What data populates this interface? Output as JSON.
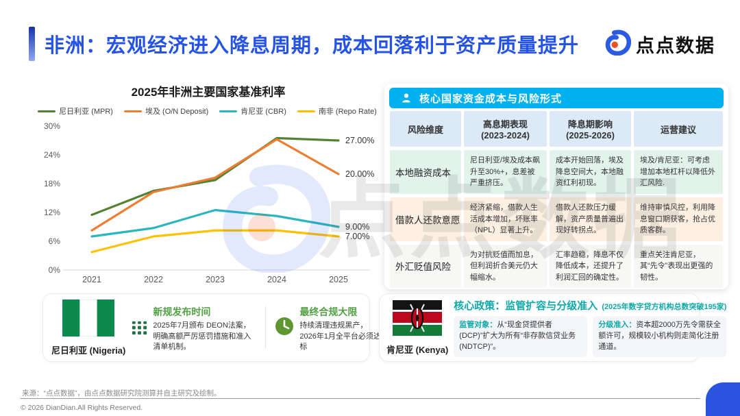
{
  "header": {
    "title": "非洲：宏观经济进入降息周期，成本回落利于资产质量提升",
    "brand": "点点数据"
  },
  "watermark": "点点数据",
  "chart_data": {
    "type": "line",
    "title": "2025年非洲主要国家基准利率",
    "x": [
      "2021",
      "2022",
      "2023",
      "2024",
      "2025"
    ],
    "series": [
      {
        "name": "尼日利亚 (MPR)",
        "color": "#548235",
        "values": [
          11.5,
          16.5,
          18.75,
          27.5,
          27.0
        ],
        "end_label": "27.00%"
      },
      {
        "name": "埃及 (O/N Deposit)",
        "color": "#ED7D31",
        "values": [
          8.25,
          16.25,
          19.25,
          27.25,
          20.0
        ],
        "end_label": "20.00%"
      },
      {
        "name": "肯尼亚 (CBR)",
        "color": "#2BB5BE",
        "values": [
          7.0,
          8.75,
          12.5,
          11.25,
          9.0
        ],
        "end_label": "9.00%"
      },
      {
        "name": "南非 (Repo Rate)",
        "color": "#FFC000",
        "values": [
          3.75,
          7.0,
          8.25,
          8.25,
          7.0
        ],
        "end_label": "7.00%"
      }
    ],
    "ylim": [
      0,
      30
    ],
    "ytick_step": 6,
    "yticks": [
      "0%",
      "6%",
      "12%",
      "18%",
      "24%",
      "30%"
    ],
    "legend_position": "top",
    "grid": false
  },
  "risk_table": {
    "banner": "核心国家资金成本与风险形式",
    "columns": [
      {
        "label": "风险维度",
        "sub": ""
      },
      {
        "label": "高息期表现",
        "sub": "(2023-2024)"
      },
      {
        "label": "降息期影响",
        "sub": "(2025-2026)"
      },
      {
        "label": "运营建议",
        "sub": ""
      }
    ],
    "rows": [
      {
        "dimension": "本地融资成本",
        "high_period": "尼日利亚/埃及成本飙升至30%+，息差被严重挤压。",
        "cut_period": "成本开始回落，埃及降息空间大，本地融资红利初现。",
        "advice": "埃及/肯尼亚：可考虑增加本地杠杆以降低外汇风险."
      },
      {
        "dimension": "借款人还款意愿",
        "high_period": "经济紧缩，借款人生活成本增加，坏账率（NPL）显著上升。",
        "cut_period": "借款人还款压力缓解，资产质量普遍出现好转拐点。",
        "advice": "维持审慎风控，利用降息窗口期获客，抢占优质客群。"
      },
      {
        "dimension": "外汇贬值风险",
        "high_period": "为对抗贬值而加息，但利润折合美元仍大幅缩水。",
        "cut_period": "汇率趋稳，降息不仅降低成本，还提升了利润汇回的确定性。",
        "advice": "重点关注肯尼亚，其“先令”表现出更强的韧性。"
      }
    ]
  },
  "nigeria_card": {
    "country": "尼日利亚 (Nigeria)",
    "item1_title": "新规发布时间",
    "item1_body": "2025年7月颁布 DEON法案，明确高额严厉惩罚措施和准入清单机制。",
    "item2_title": "最终合规大限",
    "item2_body": "持续清理违规黑产，2026年1月全平台必须达标"
  },
  "kenya_card": {
    "country": "肯尼亚 (Kenya)",
    "heading": "核心政策：监管扩容与分级准入",
    "heading_note": "(2025年数字贷方机构总数突破195家)",
    "item1_label": "监管对象：",
    "item1_body": "从“现金贷提供者(DCP)”扩大为所有“非存款信贷业务(NDTCP)”。",
    "item2_label": "分级准入：",
    "item2_body": "资本超2000万先令需获全额许可，规模较小机构则走简化注册通道。"
  },
  "footer": {
    "source": "来源：“点点数据”，由点点数据研究院测算并自主研究及绘制。",
    "copyright": "© 2026 DianDian.All Rights Reserved."
  },
  "colors": {
    "title_blue": "#2453E6",
    "banner_cyan": "#00B0F0",
    "teal": "#0FA8A8",
    "green_heading": "#52A043",
    "corner_blue": "#2B55E0"
  }
}
